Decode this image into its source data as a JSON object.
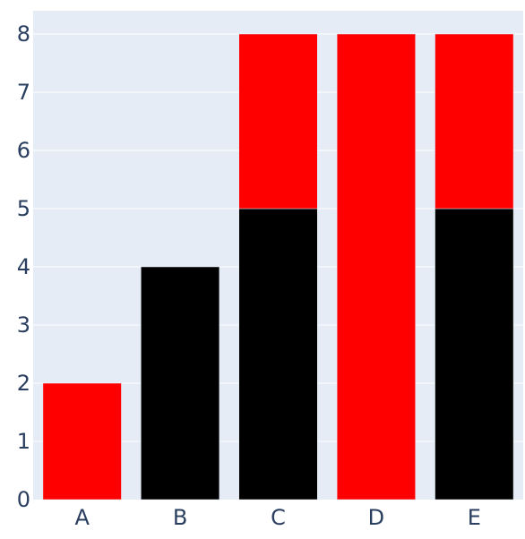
{
  "chart_data": {
    "type": "bar",
    "barmode": "stack",
    "categories": [
      "A",
      "B",
      "C",
      "D",
      "E"
    ],
    "series": [
      {
        "color": "#000000",
        "values": [
          0,
          4,
          5,
          0,
          5
        ]
      },
      {
        "color": "#ff0000",
        "values": [
          2,
          0,
          3,
          8,
          3
        ]
      }
    ],
    "title": "",
    "xlabel": "",
    "ylabel": "",
    "ylim": [
      0,
      8.4
    ],
    "yticks": [
      0,
      1,
      2,
      3,
      4,
      5,
      6,
      7,
      8
    ],
    "grid": true,
    "legend": "none",
    "plot_background": "#e5ecf6",
    "grid_color": "#ffffff",
    "tick_label_color": "#2a3f5f"
  }
}
